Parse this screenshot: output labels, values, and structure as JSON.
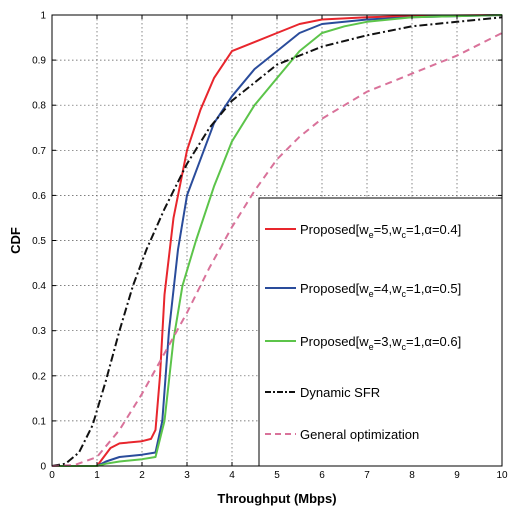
{
  "chart_data": {
    "type": "line",
    "title": "",
    "xlabel": "Throughput (Mbps)",
    "ylabel": "CDF",
    "xlim": [
      0,
      10
    ],
    "ylim": [
      0,
      1
    ],
    "xticks": [
      "0",
      "1",
      "2",
      "3",
      "4",
      "5",
      "6",
      "7",
      "8",
      "9",
      "10"
    ],
    "yticks": [
      "0",
      "0.1",
      "0.2",
      "0.3",
      "0.4",
      "0.5",
      "0.6",
      "0.7",
      "0.8",
      "0.9",
      "1"
    ],
    "grid": true,
    "legend_position": "right",
    "series": [
      {
        "name": "Proposed[we=5,wc=1,α=0.4]",
        "label_parts": [
          "Proposed[w",
          "e",
          "=5,w",
          "c",
          "=1,α=0.4]"
        ],
        "color": "#e8262d",
        "dash": "solid",
        "points": [
          [
            0,
            0
          ],
          [
            1,
            0
          ],
          [
            1.3,
            0.04
          ],
          [
            1.5,
            0.05
          ],
          [
            2.0,
            0.055
          ],
          [
            2.2,
            0.06
          ],
          [
            2.3,
            0.08
          ],
          [
            2.4,
            0.2
          ],
          [
            2.5,
            0.38
          ],
          [
            2.7,
            0.55
          ],
          [
            3.0,
            0.7
          ],
          [
            3.3,
            0.79
          ],
          [
            3.6,
            0.86
          ],
          [
            4.0,
            0.92
          ],
          [
            4.5,
            0.94
          ],
          [
            5.0,
            0.96
          ],
          [
            5.5,
            0.98
          ],
          [
            6.0,
            0.99
          ],
          [
            7.0,
            0.995
          ],
          [
            8.0,
            0.998
          ],
          [
            10,
            1.0
          ]
        ]
      },
      {
        "name": "Proposed[we=4,wc=1,α=0.5]",
        "label_parts": [
          "Proposed[w",
          "e",
          "=4,w",
          "c",
          "=1,α=0.5]"
        ],
        "color": "#2a4c9b",
        "dash": "solid",
        "points": [
          [
            0,
            0
          ],
          [
            1,
            0
          ],
          [
            1.2,
            0.01
          ],
          [
            1.5,
            0.02
          ],
          [
            2.0,
            0.025
          ],
          [
            2.3,
            0.03
          ],
          [
            2.45,
            0.1
          ],
          [
            2.6,
            0.3
          ],
          [
            2.8,
            0.48
          ],
          [
            3.0,
            0.6
          ],
          [
            3.3,
            0.68
          ],
          [
            3.6,
            0.76
          ],
          [
            4.0,
            0.82
          ],
          [
            4.5,
            0.88
          ],
          [
            5.0,
            0.92
          ],
          [
            5.5,
            0.96
          ],
          [
            6.0,
            0.98
          ],
          [
            7.0,
            0.99
          ],
          [
            8.0,
            0.995
          ],
          [
            10,
            1.0
          ]
        ]
      },
      {
        "name": "Proposed[we=3,wc=1,α=0.6]",
        "label_parts": [
          "Proposed[w",
          "e",
          "=3,w",
          "c",
          "=1,α=0.6]"
        ],
        "color": "#5cc44a",
        "dash": "solid",
        "points": [
          [
            0,
            0
          ],
          [
            1,
            0
          ],
          [
            1.2,
            0.005
          ],
          [
            1.5,
            0.01
          ],
          [
            2.0,
            0.015
          ],
          [
            2.3,
            0.02
          ],
          [
            2.5,
            0.1
          ],
          [
            2.7,
            0.28
          ],
          [
            2.9,
            0.4
          ],
          [
            3.2,
            0.5
          ],
          [
            3.6,
            0.62
          ],
          [
            4.0,
            0.72
          ],
          [
            4.5,
            0.8
          ],
          [
            5.0,
            0.86
          ],
          [
            5.5,
            0.92
          ],
          [
            6.0,
            0.96
          ],
          [
            6.5,
            0.975
          ],
          [
            7.0,
            0.985
          ],
          [
            8.0,
            0.995
          ],
          [
            10,
            1.0
          ]
        ]
      },
      {
        "name": "Dynamic SFR",
        "label_parts": [
          "Dynamic SFR"
        ],
        "color": "#111111",
        "dash": "dashdot",
        "points": [
          [
            0,
            0
          ],
          [
            0.3,
            0.005
          ],
          [
            0.6,
            0.03
          ],
          [
            0.9,
            0.09
          ],
          [
            1.2,
            0.19
          ],
          [
            1.5,
            0.3
          ],
          [
            1.8,
            0.4
          ],
          [
            2.1,
            0.48
          ],
          [
            2.5,
            0.57
          ],
          [
            3.0,
            0.67
          ],
          [
            3.5,
            0.75
          ],
          [
            4.0,
            0.81
          ],
          [
            4.5,
            0.85
          ],
          [
            5.0,
            0.89
          ],
          [
            5.5,
            0.91
          ],
          [
            6.0,
            0.93
          ],
          [
            7.0,
            0.955
          ],
          [
            8.0,
            0.975
          ],
          [
            9.0,
            0.985
          ],
          [
            10,
            0.995
          ]
        ]
      },
      {
        "name": "General optimization",
        "label_parts": [
          "General optimization"
        ],
        "color": "#d9729a",
        "dash": "dashed",
        "points": [
          [
            0,
            0
          ],
          [
            0.5,
            0.002
          ],
          [
            1.0,
            0.02
          ],
          [
            1.5,
            0.08
          ],
          [
            2.0,
            0.16
          ],
          [
            2.5,
            0.25
          ],
          [
            3.0,
            0.34
          ],
          [
            3.5,
            0.44
          ],
          [
            4.0,
            0.53
          ],
          [
            4.5,
            0.61
          ],
          [
            5.0,
            0.68
          ],
          [
            5.5,
            0.73
          ],
          [
            6.0,
            0.77
          ],
          [
            6.5,
            0.8
          ],
          [
            7.0,
            0.83
          ],
          [
            7.5,
            0.85
          ],
          [
            8.0,
            0.87
          ],
          [
            8.5,
            0.89
          ],
          [
            9.0,
            0.91
          ],
          [
            9.5,
            0.935
          ],
          [
            10,
            0.96
          ]
        ]
      }
    ]
  }
}
